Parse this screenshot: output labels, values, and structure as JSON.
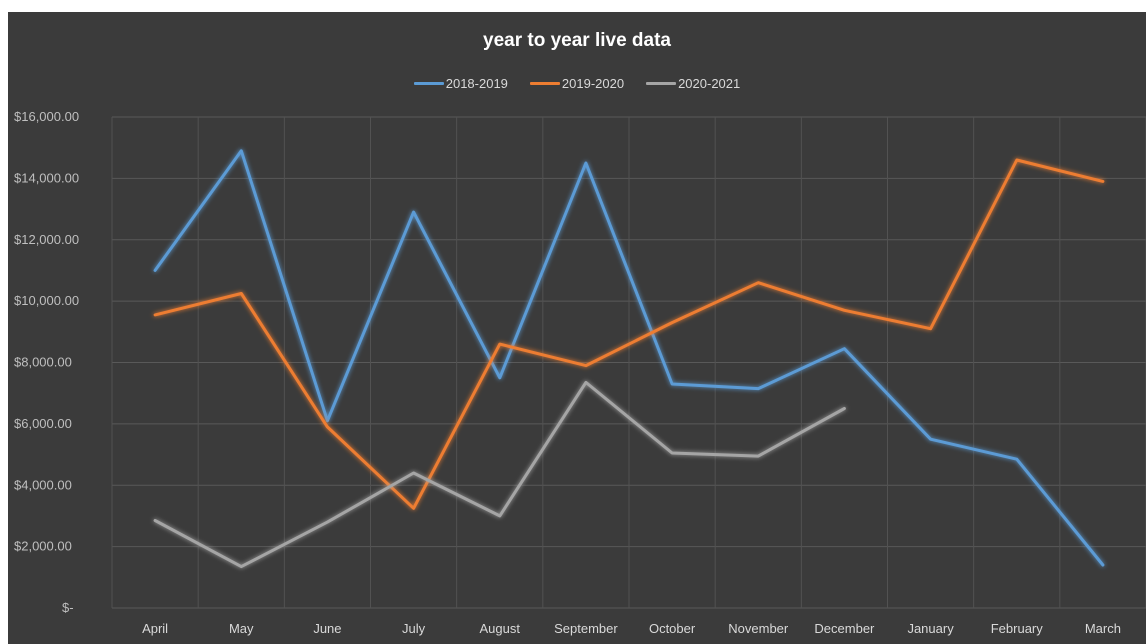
{
  "chart_data": {
    "type": "line",
    "title": "year to year live data",
    "xlabel": "",
    "ylabel": "",
    "categories": [
      "April",
      "May",
      "June",
      "July",
      "August",
      "September",
      "October",
      "November",
      "December",
      "January",
      "February",
      "March"
    ],
    "ylim": [
      0,
      16000
    ],
    "yticks": [
      0,
      2000,
      4000,
      6000,
      8000,
      10000,
      12000,
      14000,
      16000
    ],
    "ytick_labels": [
      "$-",
      "$2,000.00",
      "$4,000.00",
      "$6,000.00",
      "$8,000.00",
      "$10,000.00",
      "$12,000.00",
      "$14,000.00",
      "$16,000.00"
    ],
    "grid": true,
    "legend_position": "top",
    "series": [
      {
        "name": "2018-2019",
        "color": "#5b9bd5",
        "values": [
          11000,
          14900,
          6100,
          12900,
          7500,
          14500,
          7300,
          7150,
          8450,
          5500,
          4850,
          1400
        ]
      },
      {
        "name": "2019-2020",
        "color": "#ed7d31",
        "values": [
          9550,
          10250,
          5900,
          3250,
          8600,
          7900,
          9300,
          10600,
          9700,
          9100,
          14600,
          13900
        ]
      },
      {
        "name": "2020-2021",
        "color": "#a5a5a5",
        "values": [
          2850,
          1350,
          2800,
          4400,
          3000,
          7350,
          5050,
          4950,
          6500,
          null,
          null,
          null
        ]
      }
    ]
  }
}
